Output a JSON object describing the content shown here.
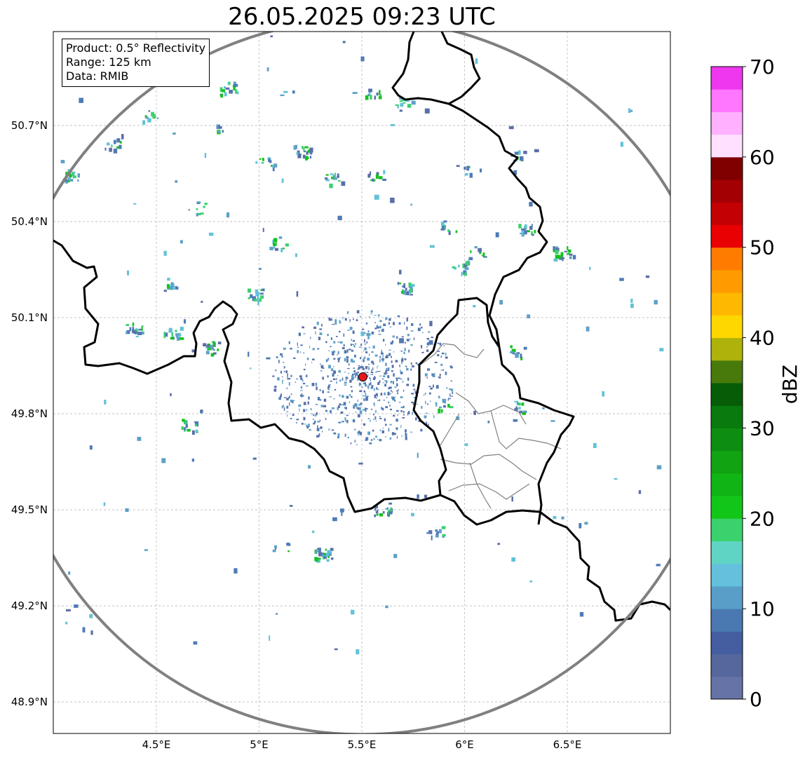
{
  "title": "26.05.2025 09:23 UTC",
  "info": {
    "product": "Product: 0.5° Reflectivity",
    "range": "Range: 125 km",
    "source": "Data: RMIB"
  },
  "map": {
    "lon_range": [
      4.0,
      7.0
    ],
    "lat_range": [
      48.8,
      51.0
    ],
    "lon_ticks": [
      {
        "value": 4.5,
        "label": "4.5°E"
      },
      {
        "value": 5.0,
        "label": "5°E"
      },
      {
        "value": 5.5,
        "label": "5.5°E"
      },
      {
        "value": 6.0,
        "label": "6°E"
      },
      {
        "value": 6.5,
        "label": "6.5°E"
      }
    ],
    "lat_ticks": [
      {
        "value": 48.9,
        "label": "48.9°N"
      },
      {
        "value": 49.2,
        "label": "49.2°N"
      },
      {
        "value": 49.5,
        "label": "49.5°N"
      },
      {
        "value": 49.8,
        "label": "49.8°N"
      },
      {
        "value": 50.1,
        "label": "50.1°N"
      },
      {
        "value": 50.4,
        "label": "50.4°N"
      },
      {
        "value": 50.7,
        "label": "50.7°N"
      }
    ],
    "grid": true,
    "radar_site": {
      "lon": 5.505,
      "lat": 49.915,
      "color": "#e8171b"
    },
    "range_ring_color": "#808080",
    "border_color": "#000000",
    "admin_border_color": "#808080"
  },
  "colorbar": {
    "label": "dBZ",
    "min": 0,
    "max": 70,
    "tick_labels": [
      "0",
      "10",
      "20",
      "30",
      "40",
      "50",
      "60",
      "70"
    ],
    "colors": [
      "#6673a6",
      "#56679e",
      "#445ea0",
      "#4a78b0",
      "#589ec8",
      "#64c0dc",
      "#60d4c4",
      "#3ad26c",
      "#12c619",
      "#10b415",
      "#11a312",
      "#0e8e10",
      "#097a0d",
      "#065c07",
      "#477a0b",
      "#afb20a",
      "#ffd700",
      "#ffb800",
      "#ff9b00",
      "#ff7c00",
      "#e80003",
      "#c30003",
      "#a20003",
      "#800000",
      "#ffe0ff",
      "#ffb1ff",
      "#ff76ff",
      "#ee37ee"
    ]
  },
  "echo_colors": [
    "#5a6fa8",
    "#4f7ab5",
    "#5ea0c8",
    "#62c2d8",
    "#3ccf70",
    "#14c11d"
  ]
}
